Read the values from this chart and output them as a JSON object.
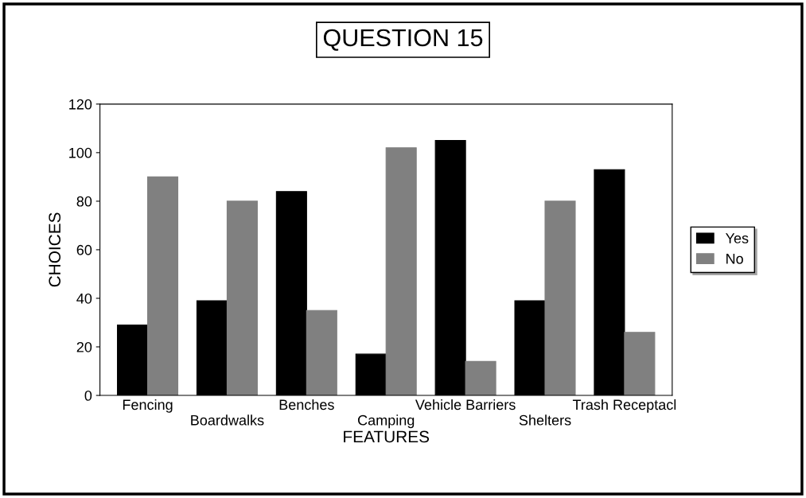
{
  "chart_data": {
    "type": "bar",
    "title": "QUESTION 15",
    "xlabel": "FEATURES",
    "ylabel": "CHOICES",
    "categories": [
      "Fencing",
      "Boardwalks",
      "Benches",
      "Camping",
      "Vehicle Barriers",
      "Shelters",
      "Trash Receptacl"
    ],
    "series": [
      {
        "name": "Yes",
        "color": "#000000",
        "values": [
          29,
          39,
          84,
          17,
          105,
          39,
          93
        ]
      },
      {
        "name": "No",
        "color": "#808080",
        "values": [
          90,
          80,
          35,
          102,
          14,
          80,
          26
        ]
      }
    ],
    "ylim": [
      0,
      120
    ],
    "yticks": [
      0,
      20,
      40,
      60,
      80,
      100,
      120
    ],
    "grid": false,
    "legend": "right"
  }
}
